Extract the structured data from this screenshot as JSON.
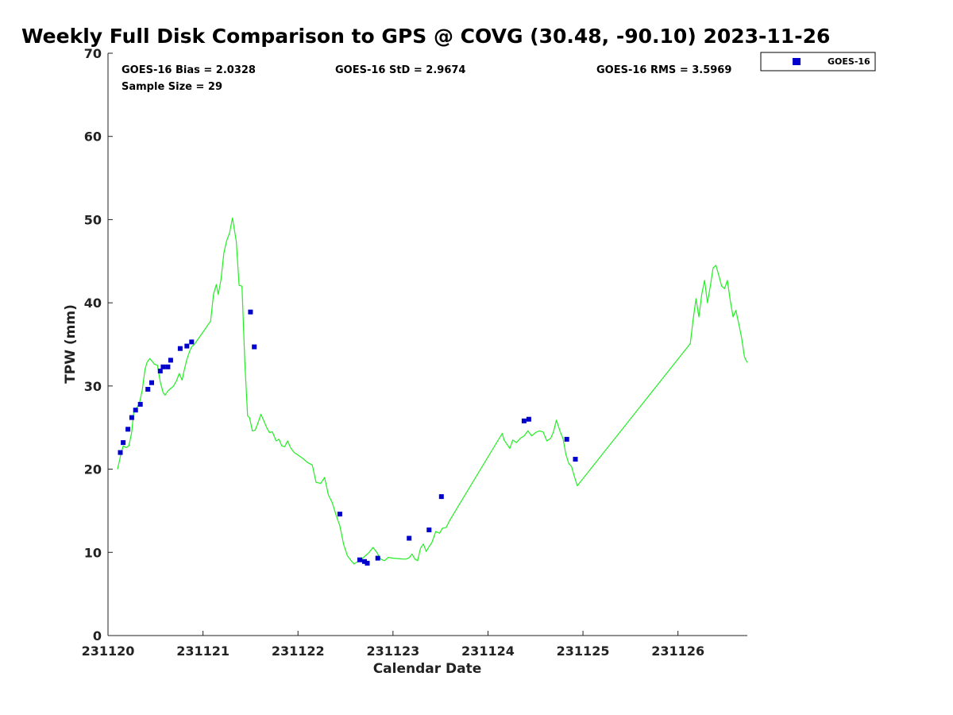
{
  "chart_data": {
    "type": "scatter",
    "title": "Weekly Full Disk Comparison to GPS @ COVG (30.48, -90.10) 2023-11-26",
    "xlabel": "Calendar Date",
    "ylabel": "TPW (mm)",
    "xlim": [
      231120,
      231126.73
    ],
    "ylim": [
      0,
      70
    ],
    "x_ticks": [
      231120,
      231121,
      231122,
      231123,
      231124,
      231125,
      231126
    ],
    "y_ticks": [
      0,
      10,
      20,
      30,
      40,
      50,
      60,
      70
    ],
    "grid": false,
    "legend": {
      "position": "top-right",
      "entries": [
        "GOES-16"
      ]
    },
    "stats": {
      "bias": "GOES-16 Bias = 2.0328",
      "std": "GOES-16 StD = 2.9674",
      "rms": "GOES-16 RMS = 3.5969",
      "n": "Sample Size = 29"
    },
    "series": [
      {
        "name": "GOES-16",
        "kind": "scatter",
        "color": "#0000cc",
        "x": [
          231120.13,
          231120.16,
          231120.21,
          231120.25,
          231120.29,
          231120.34,
          231120.42,
          231120.46,
          231120.55,
          231120.58,
          231120.63,
          231120.66,
          231120.76,
          231120.83,
          231120.88,
          231121.5,
          231121.54,
          231122.44,
          231122.65,
          231122.7,
          231122.73,
          231122.84,
          231123.17,
          231123.38,
          231123.51,
          231124.38,
          231124.43,
          231124.83,
          231124.92
        ],
        "y": [
          22.0,
          23.2,
          24.8,
          26.2,
          27.1,
          27.8,
          29.6,
          30.4,
          31.8,
          32.3,
          32.3,
          33.1,
          34.5,
          34.8,
          35.3,
          38.9,
          34.7,
          14.6,
          9.1,
          8.9,
          8.7,
          9.3,
          11.7,
          12.7,
          16.7,
          25.8,
          26.0,
          23.6,
          21.2
        ]
      },
      {
        "name": "GPS",
        "kind": "line",
        "color": "#22ee22",
        "x": [
          231120.1,
          231120.13,
          231120.16,
          231120.19,
          231120.22,
          231120.25,
          231120.27,
          231120.3,
          231120.33,
          231120.36,
          231120.39,
          231120.41,
          231120.44,
          231120.47,
          231120.49,
          231120.52,
          231120.55,
          231120.58,
          231120.6,
          231120.63,
          231120.66,
          231120.69,
          231120.72,
          231120.75,
          231120.78,
          231120.8,
          231120.83,
          231120.86,
          231120.88,
          231120.91,
          231121.08,
          231121.11,
          231121.14,
          231121.16,
          231121.19,
          231121.22,
          231121.25,
          231121.28,
          231121.31,
          231121.35,
          231121.38,
          231121.41,
          231121.44,
          231121.47,
          231121.49,
          231121.52,
          231121.55,
          231121.58,
          231121.61,
          231121.64,
          231121.67,
          231121.7,
          231121.73,
          231121.77,
          231121.8,
          231121.83,
          231121.86,
          231121.89,
          231121.92,
          231121.96,
          231122.0,
          231122.05,
          231122.1,
          231122.15,
          231122.19,
          231122.24,
          231122.28,
          231122.32,
          231122.36,
          231122.4,
          231122.44,
          231122.48,
          231122.52,
          231122.56,
          231122.59,
          231122.63,
          231122.67,
          231122.71,
          231122.75,
          231122.79,
          231122.83,
          231122.87,
          231122.91,
          231122.95,
          231123.0,
          231123.05,
          231123.1,
          231123.14,
          231123.17,
          231123.2,
          231123.23,
          231123.26,
          231123.29,
          231123.32,
          231123.35,
          231123.38,
          231123.41,
          231123.45,
          231123.49,
          231123.52,
          231123.56,
          231123.6,
          231124.15,
          231124.17,
          231124.2,
          231124.23,
          231124.26,
          231124.3,
          231124.34,
          231124.38,
          231124.42,
          231124.46,
          231124.5,
          231124.54,
          231124.58,
          231124.62,
          231124.66,
          231124.69,
          231124.72,
          231124.76,
          231124.79,
          231124.82,
          231124.85,
          231124.88,
          231124.91,
          231124.94,
          231126.13,
          231126.16,
          231126.19,
          231126.22,
          231126.25,
          231126.28,
          231126.31,
          231126.34,
          231126.37,
          231126.4,
          231126.43,
          231126.46,
          231126.49,
          231126.52,
          231126.55,
          231126.58,
          231126.61,
          231126.64,
          231126.67,
          231126.7,
          231126.73
        ],
        "y": [
          20.0,
          21.5,
          22.8,
          22.6,
          22.8,
          24.5,
          26.8,
          27.3,
          27.9,
          29.5,
          32.0,
          32.8,
          33.3,
          32.9,
          32.6,
          32.5,
          30.5,
          29.2,
          28.9,
          29.4,
          29.7,
          30.0,
          30.6,
          31.5,
          30.7,
          31.8,
          33.2,
          34.2,
          34.7,
          35.0,
          37.8,
          41.0,
          42.2,
          41.0,
          42.8,
          46.0,
          47.5,
          48.4,
          50.2,
          47.4,
          42.1,
          42.0,
          33.0,
          26.4,
          26.2,
          24.6,
          24.7,
          25.6,
          26.6,
          25.8,
          25.0,
          24.4,
          24.5,
          23.4,
          23.6,
          22.8,
          22.7,
          23.4,
          22.6,
          22.0,
          21.7,
          21.3,
          20.8,
          20.5,
          18.4,
          18.3,
          19.0,
          16.9,
          16.0,
          14.5,
          13.2,
          11.0,
          9.6,
          9.0,
          8.6,
          8.9,
          9.2,
          9.6,
          10.0,
          10.6,
          10.0,
          9.2,
          9.0,
          9.4,
          9.3,
          9.25,
          9.2,
          9.2,
          9.35,
          9.8,
          9.2,
          9.0,
          10.5,
          11.0,
          10.1,
          10.7,
          11.2,
          12.5,
          12.3,
          12.9,
          13.0,
          13.9,
          24.3,
          23.5,
          23.0,
          22.5,
          23.5,
          23.2,
          23.7,
          24.0,
          24.6,
          24.0,
          24.4,
          24.6,
          24.5,
          23.4,
          23.7,
          24.5,
          25.9,
          24.5,
          23.7,
          21.8,
          20.7,
          20.3,
          19.1,
          18.0,
          35.1,
          38.0,
          40.5,
          38.3,
          41.0,
          42.7,
          40.0,
          42.0,
          44.2,
          44.5,
          43.3,
          42.0,
          41.7,
          42.7,
          40.3,
          38.3,
          39.1,
          37.5,
          35.8,
          33.5,
          32.8
        ]
      }
    ]
  }
}
